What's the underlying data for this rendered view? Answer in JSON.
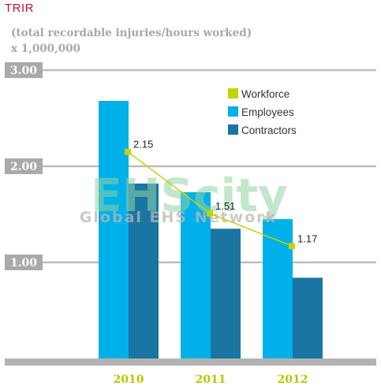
{
  "title": "TRIR",
  "subtitle_line1": "(total recordable injuries/hours worked)",
  "subtitle_line2": "x 1,000,000",
  "watermark": {
    "main": "EHScity",
    "sub": "Global EHS Network"
  },
  "chart_data": {
    "type": "bar",
    "categories": [
      "2010",
      "2011",
      "2012"
    ],
    "ylim": [
      0,
      3.0
    ],
    "yticks": [
      {
        "value": 3.0,
        "label": "3.00"
      },
      {
        "value": 2.0,
        "label": "2.00"
      },
      {
        "value": 1.0,
        "label": "1.00"
      }
    ],
    "series": [
      {
        "name": "Employees",
        "kind": "bar",
        "color": "#00b0e8",
        "values": [
          2.68,
          1.73,
          1.45
        ]
      },
      {
        "name": "Contractors",
        "kind": "bar",
        "color": "#1a75a3",
        "values": [
          1.82,
          1.35,
          0.84
        ]
      },
      {
        "name": "Workforce",
        "kind": "line",
        "color": "#c2d500",
        "values": [
          2.15,
          1.51,
          1.17
        ],
        "labels": [
          "2.15",
          "1.51",
          "1.17"
        ]
      }
    ],
    "legend": [
      {
        "name": "Workforce",
        "color": "#c2d500"
      },
      {
        "name": "Employees",
        "color": "#00b0e8"
      },
      {
        "name": "Contractors",
        "color": "#1a75a3"
      }
    ],
    "legend_position": "top-right",
    "grid": true
  }
}
